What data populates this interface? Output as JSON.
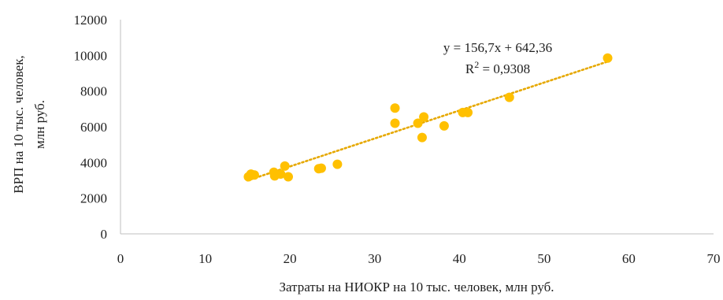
{
  "chart_data": {
    "type": "scatter",
    "title": "",
    "xlabel": "Затраты на НИОКР на 10 тыс. человек, млн руб.",
    "ylabel_lines": [
      "ВРП на 10 тыс. человек,",
      "млн руб."
    ],
    "xlim": [
      0,
      70
    ],
    "ylim": [
      0,
      12000
    ],
    "x_ticks": [
      0,
      10,
      20,
      30,
      40,
      50,
      60,
      70
    ],
    "y_ticks": [
      0,
      2000,
      4000,
      6000,
      8000,
      10000,
      12000
    ],
    "grid": false,
    "legend": "none",
    "marker_color": "#FFC000",
    "trendline_color": "#E6A800",
    "trendline": {
      "type": "linear",
      "slope": 156.7,
      "intercept": 642.36,
      "x_range": [
        15,
        57.5
      ],
      "equation": "y = 156,7x + 642,36",
      "r2_prefix": "R",
      "r2_sup": "2",
      "r2_value": " = 0,9308"
    },
    "points": [
      {
        "x": 15.1,
        "y": 3200
      },
      {
        "x": 15.4,
        "y": 3350
      },
      {
        "x": 15.8,
        "y": 3300
      },
      {
        "x": 18.1,
        "y": 3450
      },
      {
        "x": 18.2,
        "y": 3250
      },
      {
        "x": 18.9,
        "y": 3350
      },
      {
        "x": 19.4,
        "y": 3800
      },
      {
        "x": 19.8,
        "y": 3200
      },
      {
        "x": 23.4,
        "y": 3650
      },
      {
        "x": 23.7,
        "y": 3680
      },
      {
        "x": 25.6,
        "y": 3900
      },
      {
        "x": 32.4,
        "y": 7050
      },
      {
        "x": 32.4,
        "y": 6200
      },
      {
        "x": 35.1,
        "y": 6200
      },
      {
        "x": 35.6,
        "y": 5400
      },
      {
        "x": 35.8,
        "y": 6550
      },
      {
        "x": 38.2,
        "y": 6050
      },
      {
        "x": 40.4,
        "y": 6800
      },
      {
        "x": 41.0,
        "y": 6800
      },
      {
        "x": 45.9,
        "y": 7650
      },
      {
        "x": 57.5,
        "y": 9850
      }
    ]
  }
}
